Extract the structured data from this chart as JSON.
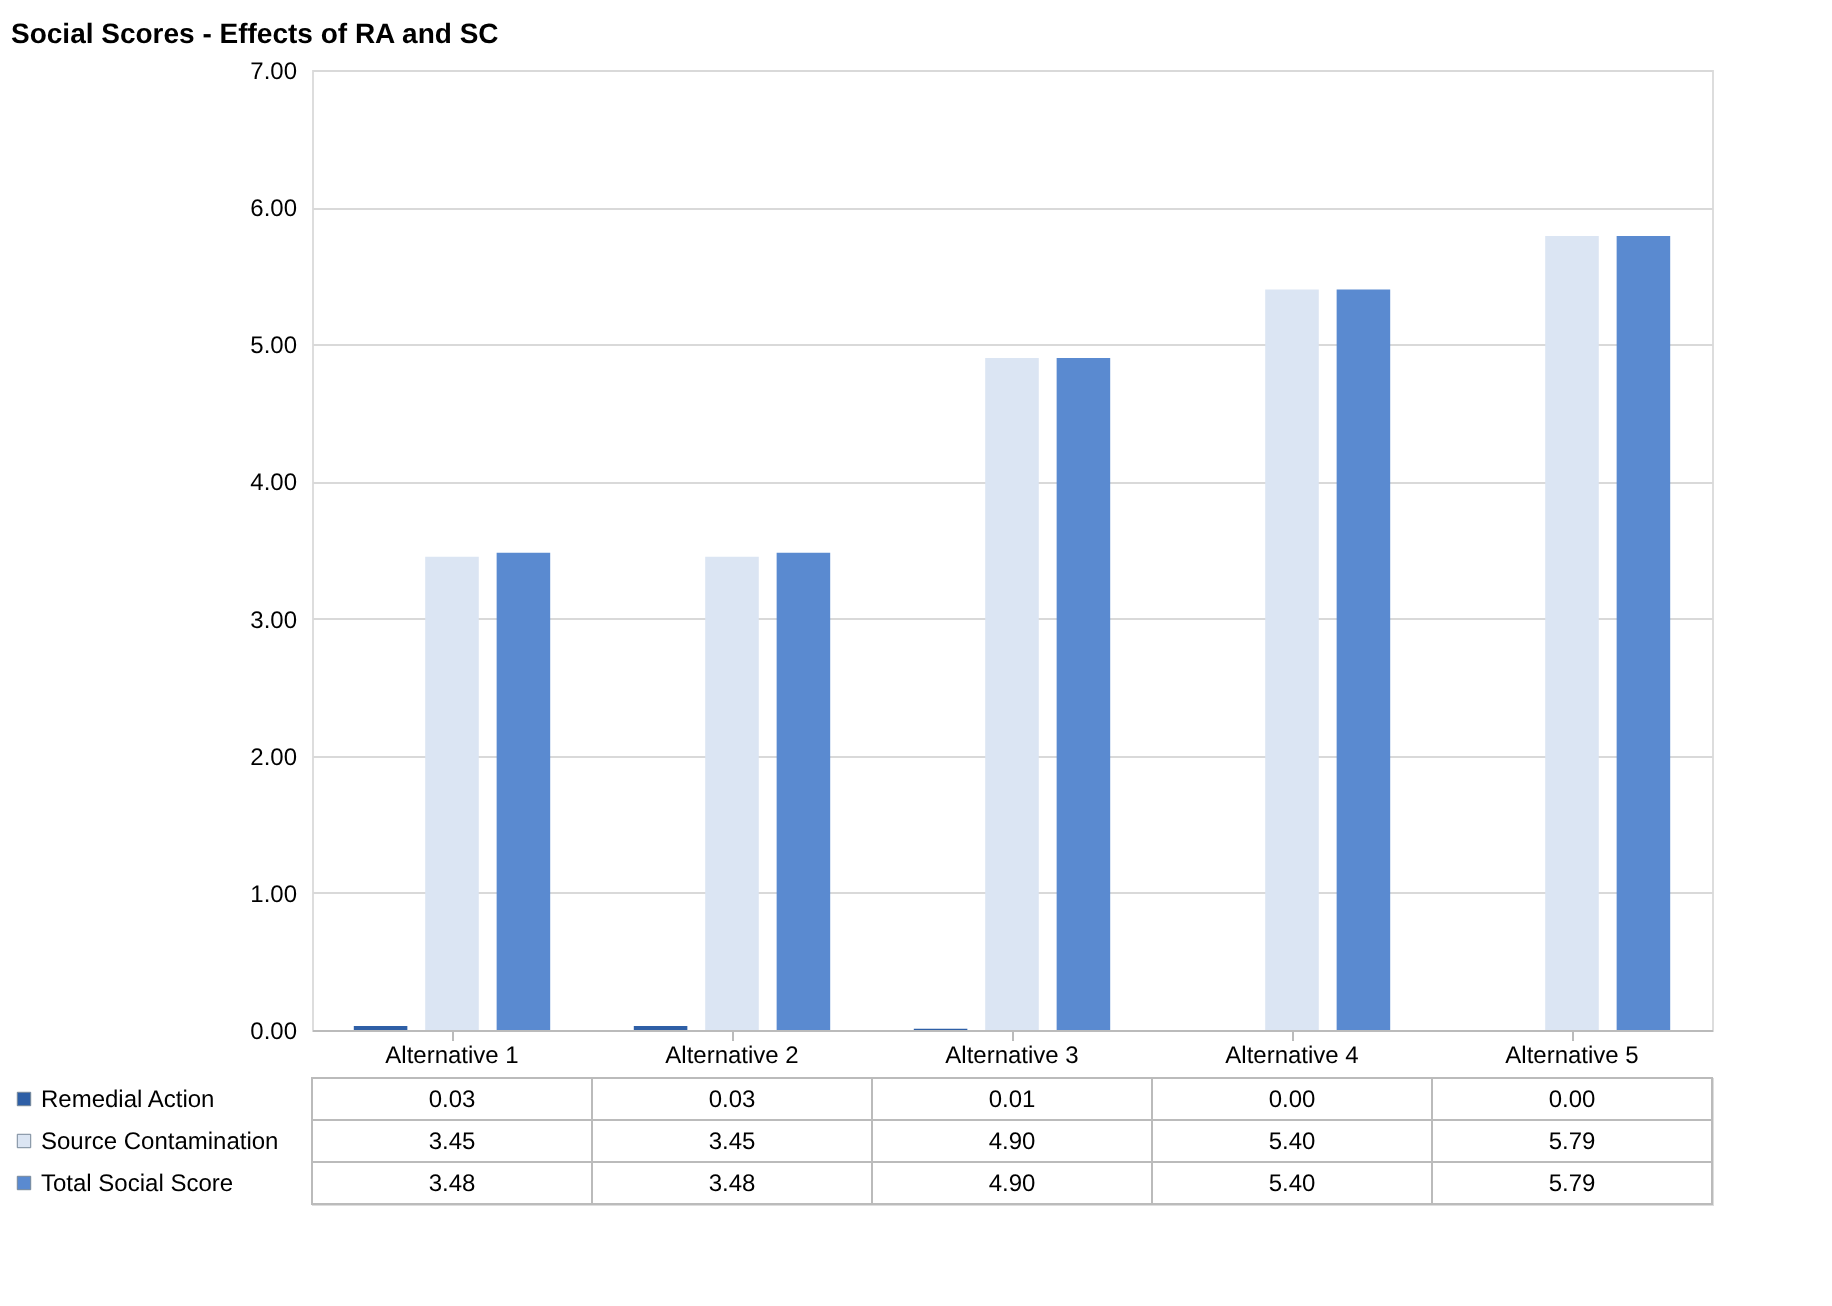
{
  "chart_data": {
    "type": "bar",
    "title": "Social Scores - Effects of RA and SC",
    "categories": [
      "Alternative 1",
      "Alternative 2",
      "Alternative 3",
      "Alternative 4",
      "Alternative 5"
    ],
    "series": [
      {
        "name": "Remedial Action",
        "color": "#2e5fa6",
        "values": [
          0.03,
          0.03,
          0.01,
          0.0,
          0.0
        ],
        "value_labels": [
          "0.03",
          "0.03",
          "0.01",
          "0.00",
          "0.00"
        ]
      },
      {
        "name": "Source Contamination",
        "color": "#dbe5f3",
        "values": [
          3.45,
          3.45,
          4.9,
          5.4,
          5.79
        ],
        "value_labels": [
          "3.45",
          "3.45",
          "4.90",
          "5.40",
          "5.79"
        ]
      },
      {
        "name": "Total Social Score",
        "color": "#5a8ad0",
        "values": [
          3.48,
          3.48,
          4.9,
          5.4,
          5.79
        ],
        "value_labels": [
          "3.48",
          "3.48",
          "4.90",
          "5.40",
          "5.79"
        ]
      }
    ],
    "ylim": [
      0,
      7
    ],
    "yticks": [
      {
        "value": 0,
        "label": "0.00"
      },
      {
        "value": 1,
        "label": "1.00"
      },
      {
        "value": 2,
        "label": "2.00"
      },
      {
        "value": 3,
        "label": "3.00"
      },
      {
        "value": 4,
        "label": "4.00"
      },
      {
        "value": 5,
        "label": "5.00"
      },
      {
        "value": 6,
        "label": "6.00"
      },
      {
        "value": 7,
        "label": "7.00"
      }
    ],
    "grid": "y",
    "legend": "bottom"
  }
}
